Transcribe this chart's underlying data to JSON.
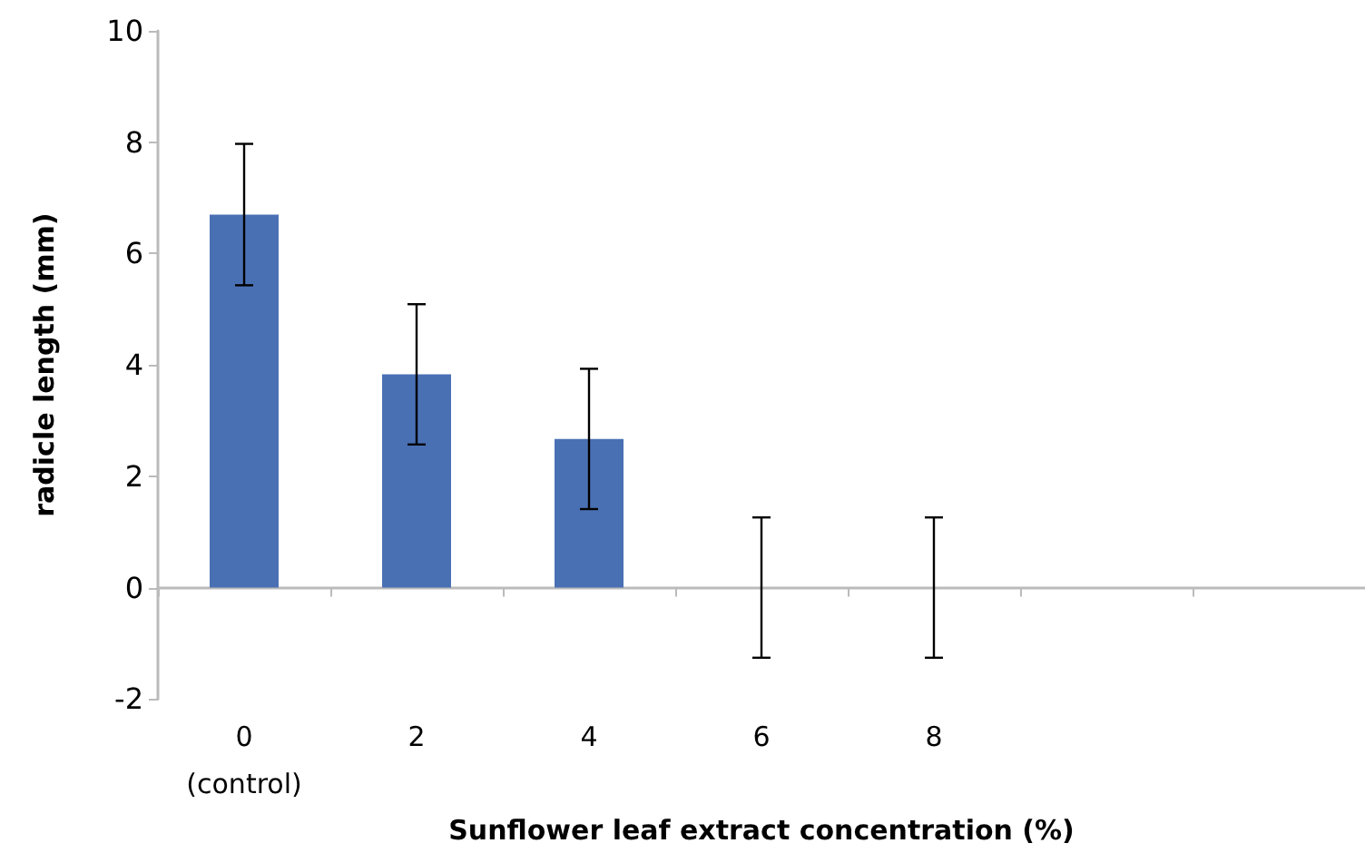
{
  "chart_data": {
    "type": "bar",
    "xlabel": "Sunflower leaf extract concentration (%)",
    "ylabel": "radicle length (mm)",
    "categories": [
      "0\n(control)",
      "2",
      "4",
      "6",
      "8",
      null,
      null
    ],
    "series": [
      {
        "color": "#4a70b4",
        "values": [
          6.7,
          3.83,
          2.67,
          0,
          0,
          null,
          null
        ],
        "errors": [
          1.27,
          1.26,
          1.26,
          1.26,
          1.26,
          null,
          null
        ]
      }
    ],
    "ylim": [
      -2,
      10
    ],
    "yticks": [
      -2,
      0,
      2,
      4,
      6,
      8,
      10
    ]
  }
}
